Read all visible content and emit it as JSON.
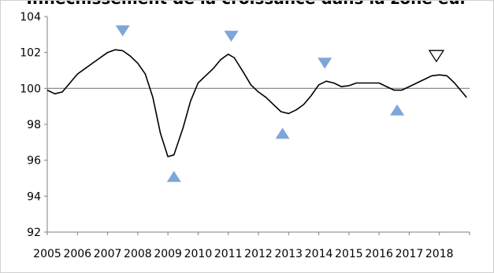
{
  "chart_data": {
    "type": "line",
    "title": "Infléchissement de la croissance dans la zone eur",
    "xlabel": "",
    "ylabel": "",
    "ylim": [
      92,
      104
    ],
    "xlim": [
      2005,
      2019
    ],
    "y_ticks": [
      92,
      94,
      96,
      98,
      100,
      102,
      104
    ],
    "x_tick_labels": [
      "2005",
      "2006",
      "2007",
      "2008",
      "2009",
      "2010",
      "2011",
      "2012",
      "2013",
      "2014",
      "2015",
      "2016",
      "2017",
      "2018"
    ],
    "grid": false,
    "reference_line": 100,
    "series": [
      {
        "color": "#000000",
        "points": [
          [
            2005.0,
            99.9
          ],
          [
            2005.25,
            99.7
          ],
          [
            2005.5,
            99.8
          ],
          [
            2005.75,
            100.3
          ],
          [
            2006.0,
            100.8
          ],
          [
            2006.25,
            101.1
          ],
          [
            2006.5,
            101.4
          ],
          [
            2006.75,
            101.7
          ],
          [
            2007.0,
            102.0
          ],
          [
            2007.25,
            102.15
          ],
          [
            2007.5,
            102.1
          ],
          [
            2007.75,
            101.8
          ],
          [
            2008.0,
            101.4
          ],
          [
            2008.25,
            100.8
          ],
          [
            2008.5,
            99.5
          ],
          [
            2008.75,
            97.5
          ],
          [
            2009.0,
            96.2
          ],
          [
            2009.2,
            96.3
          ],
          [
            2009.5,
            97.8
          ],
          [
            2009.75,
            99.3
          ],
          [
            2010.0,
            100.3
          ],
          [
            2010.25,
            100.7
          ],
          [
            2010.5,
            101.1
          ],
          [
            2010.75,
            101.6
          ],
          [
            2011.0,
            101.9
          ],
          [
            2011.2,
            101.7
          ],
          [
            2011.5,
            100.9
          ],
          [
            2011.75,
            100.2
          ],
          [
            2012.0,
            99.8
          ],
          [
            2012.25,
            99.5
          ],
          [
            2012.5,
            99.1
          ],
          [
            2012.75,
            98.7
          ],
          [
            2013.0,
            98.6
          ],
          [
            2013.25,
            98.8
          ],
          [
            2013.5,
            99.1
          ],
          [
            2013.75,
            99.6
          ],
          [
            2014.0,
            100.2
          ],
          [
            2014.25,
            100.4
          ],
          [
            2014.5,
            100.3
          ],
          [
            2014.75,
            100.1
          ],
          [
            2015.0,
            100.15
          ],
          [
            2015.25,
            100.3
          ],
          [
            2015.5,
            100.3
          ],
          [
            2015.75,
            100.3
          ],
          [
            2016.0,
            100.3
          ],
          [
            2016.25,
            100.1
          ],
          [
            2016.5,
            99.9
          ],
          [
            2016.75,
            99.9
          ],
          [
            2017.0,
            100.1
          ],
          [
            2017.25,
            100.3
          ],
          [
            2017.5,
            100.5
          ],
          [
            2017.75,
            100.7
          ],
          [
            2018.0,
            100.75
          ],
          [
            2018.25,
            100.7
          ],
          [
            2018.5,
            100.3
          ],
          [
            2018.75,
            99.8
          ],
          [
            2018.9,
            99.5
          ]
        ]
      }
    ],
    "markers": [
      {
        "x": 2007.5,
        "y": 103.2,
        "kind": "peak",
        "style": "filled",
        "color": "#7ea6d8"
      },
      {
        "x": 2009.2,
        "y": 95.1,
        "kind": "trough",
        "style": "filled",
        "color": "#7ea6d8"
      },
      {
        "x": 2011.1,
        "y": 102.9,
        "kind": "peak",
        "style": "filled",
        "color": "#7ea6d8"
      },
      {
        "x": 2012.8,
        "y": 97.5,
        "kind": "trough",
        "style": "filled",
        "color": "#7ea6d8"
      },
      {
        "x": 2014.2,
        "y": 101.4,
        "kind": "peak",
        "style": "filled",
        "color": "#7ea6d8"
      },
      {
        "x": 2016.6,
        "y": 98.8,
        "kind": "trough",
        "style": "filled",
        "color": "#7ea6d8"
      },
      {
        "x": 2017.9,
        "y": 101.8,
        "kind": "peak",
        "style": "outline",
        "color": "#000000"
      }
    ]
  }
}
